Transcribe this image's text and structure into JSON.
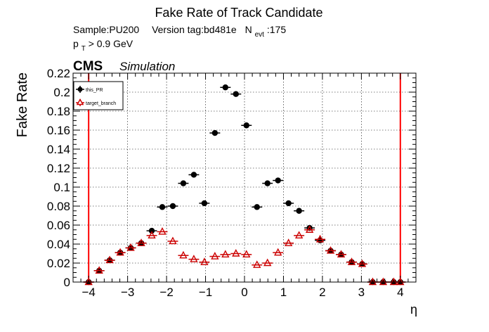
{
  "chart_data": {
    "type": "scatter",
    "title": "Fake Rate of Track Candidate",
    "info_line1": {
      "sample": "Sample:PU200",
      "version": "Version tag:bd481e",
      "nevt_symbol": "N",
      "nevt_sub": "evt",
      "nevt_value": ":175"
    },
    "info_line2": {
      "pt_symbol": "p",
      "pt_sub": "T",
      "pt_cut": " > 0.9 GeV"
    },
    "cms_label": "CMS",
    "simulation_label": "Simulation",
    "ylabel": "Fake Rate",
    "xlabel": "η",
    "xlim": [
      -4.4,
      4.4
    ],
    "ylim": [
      0,
      0.22
    ],
    "x_ticks": [
      -4,
      -3,
      -2,
      -1,
      0,
      1,
      2,
      3,
      4
    ],
    "x_tick_labels": [
      "−4",
      "−3",
      "−2",
      "−1",
      "0",
      "1",
      "2",
      "3",
      "4"
    ],
    "y_ticks": [
      0,
      0.02,
      0.04,
      0.06,
      0.08,
      0.1,
      0.12,
      0.14,
      0.16,
      0.18,
      0.2,
      0.22
    ],
    "y_tick_labels": [
      "0",
      "0.02",
      "0.04",
      "0.06",
      "0.08",
      "0.1",
      "0.12",
      "0.14",
      "0.16",
      "0.18",
      "0.2",
      "0.22"
    ],
    "grid": true,
    "legend_position": "top-left",
    "vertical_lines": [
      -4,
      4
    ],
    "vertical_line_color": "#ff0000",
    "bin_half_width": 0.135,
    "series": [
      {
        "name": "this_PR",
        "color": "#000000",
        "marker": "filled-circle",
        "x": [
          -4.0,
          -3.73,
          -3.46,
          -3.19,
          -2.92,
          -2.65,
          -2.38,
          -2.11,
          -1.84,
          -1.57,
          -1.3,
          -1.03,
          -0.76,
          -0.49,
          -0.22,
          0.05,
          0.32,
          0.59,
          0.86,
          1.13,
          1.4,
          1.67,
          1.94,
          2.21,
          2.48,
          2.75,
          3.02,
          3.29,
          3.56,
          3.83,
          4.0
        ],
        "values": [
          0.0,
          0.012,
          0.023,
          0.031,
          0.036,
          0.041,
          0.054,
          0.079,
          0.08,
          0.104,
          0.113,
          0.083,
          0.157,
          0.205,
          0.198,
          0.165,
          0.079,
          0.104,
          0.107,
          0.083,
          0.075,
          0.057,
          0.044,
          0.033,
          0.029,
          0.021,
          0.019,
          0.0,
          0.0,
          0.0,
          0.0
        ]
      },
      {
        "name": "target_branch",
        "color": "#cc0000",
        "marker": "open-triangle",
        "x": [
          -4.0,
          -3.73,
          -3.46,
          -3.19,
          -2.92,
          -2.65,
          -2.38,
          -2.11,
          -1.84,
          -1.57,
          -1.3,
          -1.03,
          -0.76,
          -0.49,
          -0.22,
          0.05,
          0.32,
          0.59,
          0.86,
          1.13,
          1.4,
          1.67,
          1.94,
          2.21,
          2.48,
          2.75,
          3.02,
          3.29,
          3.56,
          3.83,
          4.0
        ],
        "values": [
          0.0,
          0.012,
          0.023,
          0.031,
          0.036,
          0.041,
          0.049,
          0.053,
          0.043,
          0.028,
          0.024,
          0.021,
          0.027,
          0.029,
          0.03,
          0.029,
          0.018,
          0.02,
          0.031,
          0.041,
          0.049,
          0.055,
          0.045,
          0.033,
          0.029,
          0.021,
          0.019,
          0.0,
          0.0,
          0.0,
          0.0
        ]
      }
    ]
  }
}
